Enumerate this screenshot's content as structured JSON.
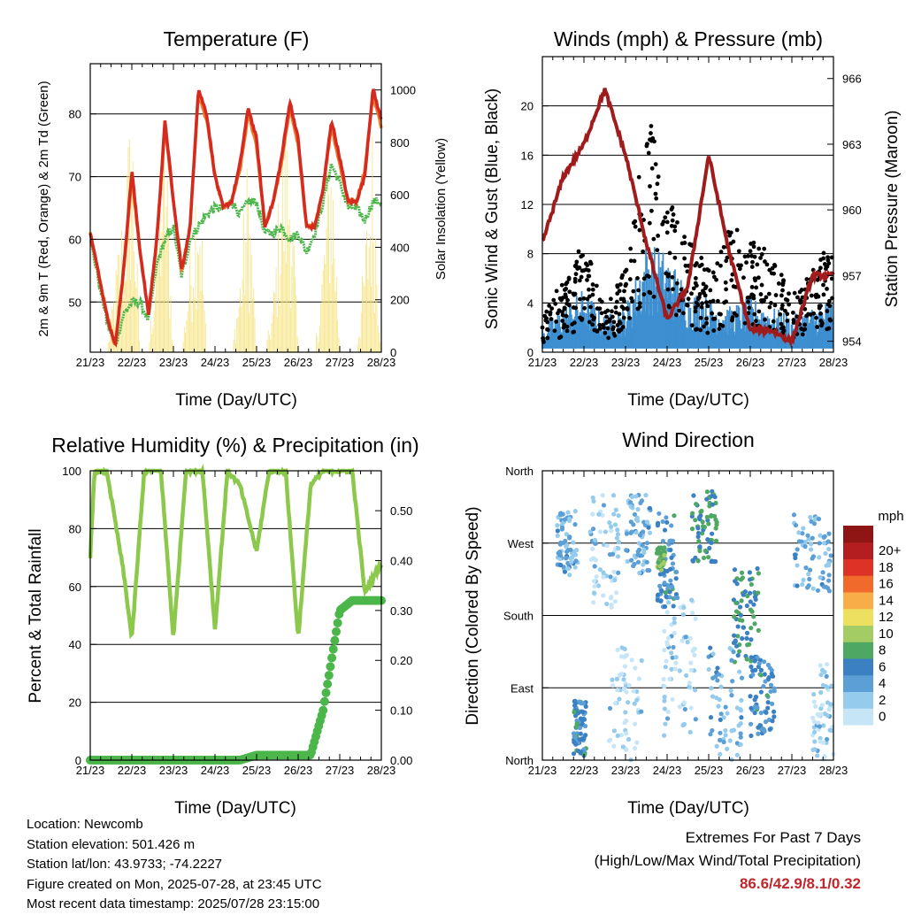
{
  "colors": {
    "t2m": "#d42a20",
    "t9m": "#f07a2a",
    "td": "#4bb64a",
    "solar": "#f5e27a",
    "sonic": "#3d8fd1",
    "gust": "#000000",
    "pressure": "#a01c1c",
    "rh": "#8cc84b",
    "precip": "#4bb64a",
    "extremes": "#c0272d"
  },
  "x_ticks": [
    "21/23",
    "22/23",
    "23/23",
    "24/23",
    "25/23",
    "26/23",
    "27/23",
    "28/23"
  ],
  "xlabel": "Time (Day/UTC)",
  "panels": {
    "temperature": {
      "title": "Temperature (F)",
      "ylabel_left": "2m & 9m T (Red, Orange) & 2m Td (Green)",
      "ylabel_right": "Solar Insolation (Yellow)",
      "left_ticks": [
        "50",
        "60",
        "70",
        "80"
      ],
      "right_ticks": [
        "0",
        "200",
        "400",
        "600",
        "800",
        "1000"
      ]
    },
    "winds": {
      "title": "Winds (mph) & Pressure (mb)",
      "ylabel_left": "Sonic Wind & Gust (Blue, Black)",
      "ylabel_right": "Station Pressure (Maroon)",
      "left_ticks": [
        "0",
        "4",
        "8",
        "12",
        "16",
        "20"
      ],
      "right_ticks": [
        "954",
        "957",
        "960",
        "963",
        "966"
      ]
    },
    "humidity": {
      "title": "Relative Humidity (%) & Precipitation (in)",
      "ylabel_left": "Percent & Total Rainfall",
      "left_ticks": [
        "0",
        "20",
        "40",
        "60",
        "80",
        "100"
      ],
      "right_ticks": [
        "0.00",
        "0.10",
        "0.20",
        "0.30",
        "0.40",
        "0.50"
      ]
    },
    "direction": {
      "title": "Wind Direction",
      "ylabel_left": "Direction (Colored By Speed)",
      "left_ticks": [
        "North",
        "East",
        "South",
        "West",
        "North"
      ],
      "colorbar_title": "mph",
      "colorbar_labels": [
        "0",
        "2",
        "4",
        "6",
        "8",
        "10",
        "12",
        "14",
        "16",
        "18",
        "20+"
      ],
      "colorbar_colors": [
        "#c6e6f8",
        "#95cbec",
        "#5b9fd6",
        "#3b80c2",
        "#4ea864",
        "#a3cd64",
        "#ede061",
        "#f8ad48",
        "#f06a2c",
        "#dd3326",
        "#b51e21",
        "#8f1515"
      ]
    }
  },
  "info": {
    "location": "Location: Newcomb",
    "elevation": "Station elevation: 501.426 m",
    "latlon": "Station lat/lon: 43.9733; -74.2227",
    "created": "Figure created on Mon, 2025-07-28, at 23:45 UTC",
    "recent": "Most recent data timestamp: 2025/07/28 23:15:00"
  },
  "extremes": {
    "title": "Extremes For Past 7 Days",
    "subtitle": "(High/Low/Max Wind/Total Precipitation)",
    "values": "86.6/42.9/8.1/0.32"
  },
  "chart_data": [
    {
      "type": "line",
      "title": "Temperature (F)",
      "x_unit": "day/UTC hour 23",
      "x": [
        21,
        21.4,
        21.6,
        21.8,
        22.0,
        22.2,
        22.4,
        22.6,
        22.8,
        23.0,
        23.2,
        23.4,
        23.6,
        23.8,
        24.0,
        24.2,
        24.4,
        24.6,
        24.8,
        25.0,
        25.2,
        25.4,
        25.6,
        25.8,
        26.0,
        26.2,
        26.4,
        26.6,
        26.8,
        27.0,
        27.2,
        27.4,
        27.6,
        27.8,
        28.0
      ],
      "series": [
        {
          "name": "2m T",
          "values": [
            61,
            48,
            43,
            55,
            71,
            58,
            48,
            60,
            79,
            66,
            55,
            62,
            84,
            80,
            70,
            65,
            66,
            72,
            81,
            76,
            62,
            66,
            73,
            82,
            76,
            62,
            62,
            68,
            79,
            73,
            66,
            66,
            70,
            84,
            79
          ]
        },
        {
          "name": "9m T",
          "values": [
            61,
            48,
            43,
            55,
            70,
            58,
            48,
            60,
            78,
            66,
            55,
            62,
            83,
            79,
            70,
            65,
            66,
            71,
            80,
            75,
            62,
            66,
            72,
            81,
            75,
            62,
            62,
            68,
            78,
            72,
            66,
            66,
            71,
            83,
            78
          ]
        },
        {
          "name": "2m Td",
          "values": [
            60,
            47,
            43,
            48,
            50,
            50,
            47,
            56,
            60,
            62,
            54,
            60,
            62,
            64,
            65,
            65,
            66,
            64,
            66,
            66,
            61,
            61,
            62,
            60,
            61,
            58,
            61,
            66,
            72,
            69,
            65,
            65,
            63,
            66,
            66
          ]
        },
        {
          "name": "Solar Insolation",
          "values": [
            0,
            0,
            300,
            600,
            1000,
            0,
            0,
            500,
            1000,
            0,
            0,
            400,
            900,
            0,
            0,
            0,
            0,
            300,
            800,
            0,
            0,
            200,
            800,
            900,
            0,
            0,
            0,
            400,
            950,
            0,
            0,
            0,
            400,
            900,
            0
          ]
        }
      ],
      "ylim": [
        42,
        88
      ],
      "ylim_right": [
        0,
        1100
      ]
    },
    {
      "type": "scatter",
      "title": "Winds (mph) & Pressure (mb)",
      "x": [
        21,
        21.5,
        22.0,
        22.5,
        23.0,
        23.5,
        24.0,
        24.5,
        25.0,
        25.5,
        26.0,
        26.5,
        27.0,
        27.5,
        28.0
      ],
      "series": [
        {
          "name": "Sonic Wind",
          "values": [
            1.5,
            2.5,
            3.5,
            2.0,
            2.5,
            6.0,
            5.5,
            3.5,
            3.0,
            2.5,
            3.0,
            2.5,
            2.0,
            2.5,
            3.0
          ]
        },
        {
          "name": "Gust",
          "values": [
            3,
            5,
            8,
            3,
            6,
            18,
            11,
            8,
            6,
            9,
            8,
            7,
            4,
            6,
            8
          ]
        },
        {
          "name": "Station Pressure",
          "values": [
            958.5,
            961.5,
            963.0,
            965.5,
            962.5,
            958.5,
            955.0,
            956.5,
            962.5,
            958.0,
            954.5,
            954.5,
            954.0,
            957.0,
            957.0
          ]
        }
      ],
      "ylim": [
        0,
        24
      ],
      "ylim_right": [
        953.5,
        967
      ]
    },
    {
      "type": "line",
      "title": "Relative Humidity (%) & Precipitation (in)",
      "x": [
        21,
        21.1,
        21.4,
        21.8,
        22.0,
        22.3,
        22.7,
        23.0,
        23.3,
        23.7,
        24.0,
        24.3,
        24.6,
        25.0,
        25.3,
        25.7,
        26.0,
        26.3,
        26.6,
        27.0,
        27.3,
        27.6,
        28.0
      ],
      "series": [
        {
          "name": "Relative Humidity",
          "values": [
            70,
            100,
            100,
            65,
            42,
            100,
            100,
            42,
            100,
            100,
            45,
            100,
            95,
            72,
            100,
            100,
            42,
            95,
            100,
            100,
            100,
            58,
            68
          ]
        },
        {
          "name": "Total Precipitation",
          "values": [
            0,
            0,
            0,
            0,
            0,
            0,
            0,
            0,
            0,
            0,
            0,
            0,
            0,
            0.01,
            0.01,
            0.01,
            0.01,
            0.01,
            0.1,
            0.3,
            0.32,
            0.32,
            0.32
          ]
        }
      ],
      "ylim": [
        0,
        100
      ],
      "ylim_right": [
        0,
        0.58
      ]
    },
    {
      "type": "scatter",
      "title": "Wind Direction",
      "y_categories": [
        "North",
        "East",
        "South",
        "West",
        "North"
      ],
      "color_scale": "mph",
      "ylim": [
        0,
        360
      ]
    }
  ]
}
